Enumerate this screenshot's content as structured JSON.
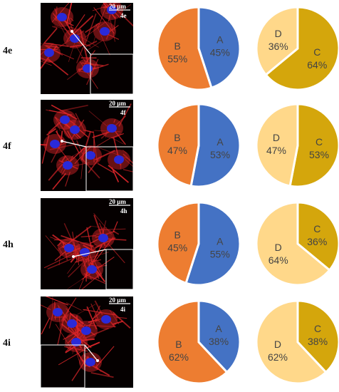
{
  "colors": {
    "A": "#4472c4",
    "B": "#ed7d31",
    "C": "#d4a60c",
    "D": "#ffd88a",
    "actin": "#e0262a",
    "nucleus": "#2a2ad8"
  },
  "chart_data": [
    {
      "type": "pie",
      "row": "4e",
      "slices": [
        {
          "label": "A",
          "percent": "45%",
          "value": 45
        },
        {
          "label": "B",
          "percent": "55%",
          "value": 55
        }
      ]
    },
    {
      "type": "pie",
      "row": "4e",
      "slices": [
        {
          "label": "C",
          "percent": "64%",
          "value": 64
        },
        {
          "label": "D",
          "percent": "36%",
          "value": 36
        }
      ]
    },
    {
      "type": "pie",
      "row": "4f",
      "slices": [
        {
          "label": "A",
          "percent": "53%",
          "value": 53
        },
        {
          "label": "B",
          "percent": "47%",
          "value": 47
        }
      ]
    },
    {
      "type": "pie",
      "row": "4f",
      "slices": [
        {
          "label": "C",
          "percent": "53%",
          "value": 53
        },
        {
          "label": "D",
          "percent": "47%",
          "value": 47
        }
      ]
    },
    {
      "type": "pie",
      "row": "4h",
      "slices": [
        {
          "label": "A",
          "percent": "55%",
          "value": 55
        },
        {
          "label": "B",
          "percent": "45%",
          "value": 45
        }
      ]
    },
    {
      "type": "pie",
      "row": "4h",
      "slices": [
        {
          "label": "C",
          "percent": "36%",
          "value": 36
        },
        {
          "label": "D",
          "percent": "64%",
          "value": 64
        }
      ]
    },
    {
      "type": "pie",
      "row": "4i",
      "slices": [
        {
          "label": "A",
          "percent": "38%",
          "value": 38
        },
        {
          "label": "B",
          "percent": "62%",
          "value": 62
        }
      ]
    },
    {
      "type": "pie",
      "row": "4i",
      "slices": [
        {
          "label": "C",
          "percent": "38%",
          "value": 38
        },
        {
          "label": "D",
          "percent": "62%",
          "value": 62
        }
      ]
    }
  ],
  "rows": [
    {
      "label": "4e",
      "scale_bar": "20 μm",
      "image_tag": "4e"
    },
    {
      "label": "4f",
      "scale_bar": "20 μm",
      "image_tag": "4f"
    },
    {
      "label": "4h",
      "scale_bar": "20 μm",
      "image_tag": "4h"
    },
    {
      "label": "4i",
      "scale_bar": "20 μm",
      "image_tag": "4i"
    }
  ]
}
